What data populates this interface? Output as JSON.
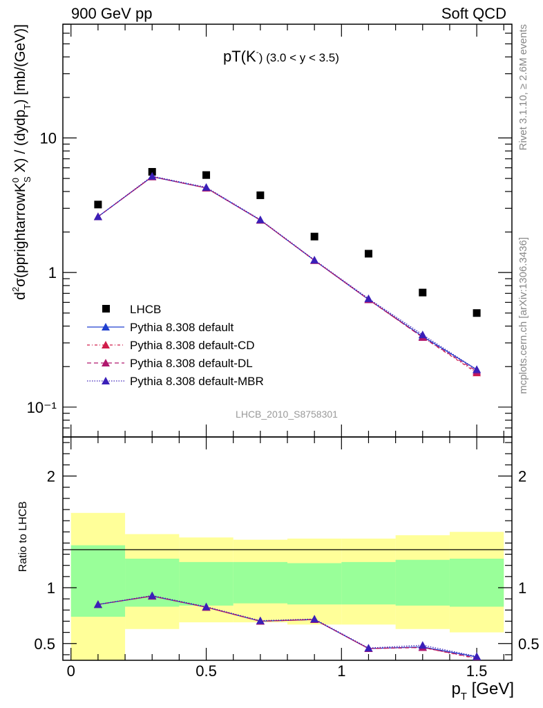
{
  "header": {
    "left": "900 GeV pp",
    "right": "Soft QCD"
  },
  "side": {
    "rivet": "Rivet 3.1.10, ≥ 2.6M events",
    "mcplots": "mcplots.cern.ch [arXiv:1306.3436]"
  },
  "plot": {
    "title": "pT(K",
    "title_super": "-",
    "title_tail": ") (3.0 < y < 3.5)",
    "analysis_id": "LHCB_2010_S8758301",
    "ylabel_main": "d²σ(pprightarrowK⁰_S X) / (dydp_T) [mb/(GeV)]",
    "ylabel_ratio": "Ratio to LHCB",
    "xlabel": "p_T [GeV]"
  },
  "legend": [
    {
      "label": "LHCB",
      "color": "#000000",
      "marker": "square",
      "dash": ""
    },
    {
      "label": "Pythia 8.308 default",
      "color": "#1f3fcf",
      "marker": "triangle",
      "dash": ""
    },
    {
      "label": "Pythia 8.308 default-CD",
      "color": "#d01c4a",
      "marker": "triangle",
      "dash": "4,3,1,3"
    },
    {
      "label": "Pythia 8.308 default-DL",
      "color": "#b0186e",
      "marker": "triangle",
      "dash": "6,4"
    },
    {
      "label": "Pythia 8.308 default-MBR",
      "color": "#3a1fb8",
      "marker": "triangle",
      "dash": "1.5,2"
    }
  ],
  "chart_data": {
    "type": "line",
    "title": "pT(K-) (3.0 < y < 3.5)",
    "xlabel": "p_T [GeV]",
    "ylabel": "d²σ(pprightarrowK⁰_S X) / (dydp_T) [mb/(GeV)]",
    "x": [
      0.1,
      0.3,
      0.5,
      0.7,
      0.9,
      1.1,
      1.3,
      1.5
    ],
    "bin_edges": [
      0.0,
      0.2,
      0.4,
      0.6,
      0.8,
      1.0,
      1.2,
      1.4,
      1.6
    ],
    "xlim": [
      -0.03,
      1.63
    ],
    "ylim": [
      0.06,
      70
    ],
    "yscale": "log",
    "yticks": [
      0.1,
      1,
      10
    ],
    "ytick_labels": [
      "10⁻¹",
      "1",
      "10"
    ],
    "xticks": [
      0,
      0.5,
      1,
      1.5
    ],
    "xtick_labels": [
      "0",
      "0.5",
      "1",
      "1.5"
    ],
    "series": [
      {
        "name": "LHCB",
        "values": [
          3.2,
          5.6,
          5.3,
          3.75,
          1.85,
          1.38,
          0.71,
          0.5
        ]
      },
      {
        "name": "Pythia 8.308 default",
        "values": [
          2.6,
          5.15,
          4.25,
          2.45,
          1.23,
          0.63,
          0.335,
          0.19
        ]
      },
      {
        "name": "Pythia 8.308 default-CD",
        "values": [
          2.6,
          5.15,
          4.25,
          2.45,
          1.23,
          0.63,
          0.33,
          0.18
        ]
      },
      {
        "name": "Pythia 8.308 default-DL",
        "values": [
          2.6,
          5.15,
          4.25,
          2.45,
          1.23,
          0.63,
          0.33,
          0.185
        ]
      },
      {
        "name": "Pythia 8.308 default-MBR",
        "values": [
          2.6,
          5.2,
          4.3,
          2.47,
          1.24,
          0.64,
          0.345,
          0.19
        ]
      }
    ],
    "ratio": {
      "ylabel": "Ratio to LHCB",
      "ylim": [
        0.35,
        2.35
      ],
      "yticks": [
        0.5,
        1,
        2
      ],
      "ytick_labels": [
        "0.5",
        "1",
        "2"
      ],
      "band_inner": [
        [
          0.74,
          1.38
        ],
        [
          0.83,
          1.26
        ],
        [
          0.84,
          1.23
        ],
        [
          0.86,
          1.23
        ],
        [
          0.85,
          1.22
        ],
        [
          0.85,
          1.23
        ],
        [
          0.84,
          1.25
        ],
        [
          0.83,
          1.26
        ]
      ],
      "band_outer": [
        [
          0.3,
          1.67
        ],
        [
          0.63,
          1.48
        ],
        [
          0.69,
          1.45
        ],
        [
          0.69,
          1.43
        ],
        [
          0.67,
          1.44
        ],
        [
          0.67,
          1.44
        ],
        [
          0.63,
          1.47
        ],
        [
          0.6,
          1.5
        ]
      ],
      "series": [
        {
          "name": "Pythia 8.308 default",
          "values": [
            0.85,
            0.925,
            0.825,
            0.7,
            0.715,
            0.455,
            0.47,
            0.38
          ]
        },
        {
          "name": "Pythia 8.308 default-CD",
          "values": [
            0.85,
            0.925,
            0.825,
            0.7,
            0.715,
            0.455,
            0.465,
            0.365
          ]
        },
        {
          "name": "Pythia 8.308 default-DL",
          "values": [
            0.85,
            0.925,
            0.825,
            0.7,
            0.715,
            0.455,
            0.465,
            0.37
          ]
        },
        {
          "name": "Pythia 8.308 default-MBR",
          "values": [
            0.85,
            0.93,
            0.83,
            0.705,
            0.72,
            0.46,
            0.485,
            0.385
          ]
        }
      ]
    }
  }
}
